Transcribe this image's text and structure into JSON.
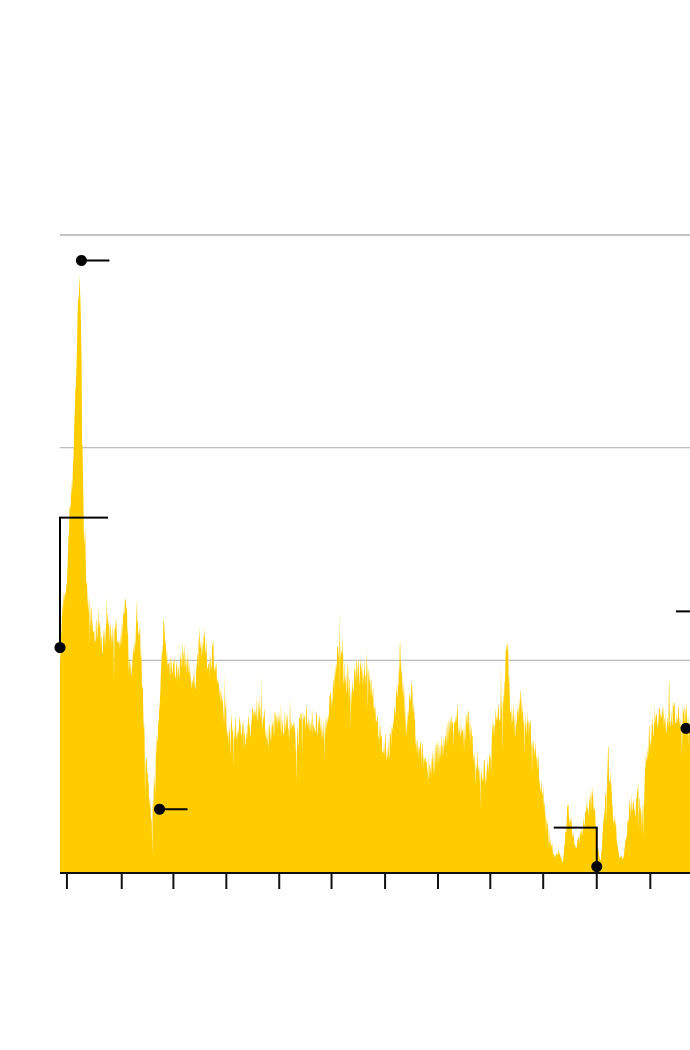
{
  "colors": {
    "area": "#ffcc00",
    "gridline": "#b5b5b5",
    "top_rule": "#c4c4c4",
    "axis": "#111111",
    "annotation": "#000000"
  },
  "chart_data": {
    "type": "area",
    "title": "",
    "xlabel": "",
    "ylabel": "",
    "xlim": [
      0,
      1000
    ],
    "ylim": [
      0,
      300
    ],
    "grid": true,
    "gridlines_y": [
      100,
      200,
      300
    ],
    "x_ticks": [
      11,
      98,
      180,
      264,
      348,
      431,
      516,
      600,
      683,
      767,
      852,
      937
    ],
    "series": [
      {
        "values": [
          [
            0,
            104
          ],
          [
            5,
            126
          ],
          [
            10,
            131
          ],
          [
            15,
            171
          ],
          [
            20,
            186
          ],
          [
            25,
            230
          ],
          [
            31,
            288
          ],
          [
            34,
            240
          ],
          [
            38,
            160
          ],
          [
            44,
            131
          ],
          [
            50,
            118
          ],
          [
            56,
            110
          ],
          [
            62,
            121
          ],
          [
            68,
            104
          ],
          [
            74,
            125
          ],
          [
            80,
            110
          ],
          [
            87,
            118
          ],
          [
            94,
            104
          ],
          [
            98,
            112
          ],
          [
            105,
            127
          ],
          [
            110,
            96
          ],
          [
            117,
            103
          ],
          [
            122,
            120
          ],
          [
            128,
            108
          ],
          [
            135,
            60
          ],
          [
            140,
            40
          ],
          [
            146,
            25
          ],
          [
            152,
            56
          ],
          [
            158,
            74
          ],
          [
            164,
            116
          ],
          [
            172,
            97
          ],
          [
            178,
            100
          ],
          [
            186,
            94
          ],
          [
            195,
            103
          ],
          [
            204,
            98
          ],
          [
            212,
            88
          ],
          [
            220,
            104
          ],
          [
            228,
            110
          ],
          [
            236,
            98
          ],
          [
            244,
            106
          ],
          [
            252,
            86
          ],
          [
            260,
            76
          ],
          [
            268,
            68
          ],
          [
            280,
            70
          ],
          [
            292,
            66
          ],
          [
            305,
            72
          ],
          [
            315,
            80
          ],
          [
            330,
            65
          ],
          [
            345,
            72
          ],
          [
            360,
            70
          ],
          [
            375,
            64
          ],
          [
            390,
            74
          ],
          [
            405,
            70
          ],
          [
            418,
            66
          ],
          [
            430,
            80
          ],
          [
            440,
            100
          ],
          [
            445,
            110
          ],
          [
            450,
            95
          ],
          [
            456,
            90
          ],
          [
            462,
            84
          ],
          [
            470,
            96
          ],
          [
            478,
            92
          ],
          [
            488,
            96
          ],
          [
            495,
            88
          ],
          [
            502,
            75
          ],
          [
            510,
            60
          ],
          [
            520,
            58
          ],
          [
            530,
            68
          ],
          [
            540,
            105
          ],
          [
            550,
            66
          ],
          [
            558,
            88
          ],
          [
            566,
            58
          ],
          [
            575,
            55
          ],
          [
            588,
            50
          ],
          [
            598,
            56
          ],
          [
            608,
            60
          ],
          [
            618,
            68
          ],
          [
            628,
            75
          ],
          [
            638,
            64
          ],
          [
            648,
            72
          ],
          [
            658,
            56
          ],
          [
            668,
            45
          ],
          [
            678,
            48
          ],
          [
            688,
            70
          ],
          [
            698,
            76
          ],
          [
            705,
            86
          ],
          [
            710,
            112
          ],
          [
            715,
            75
          ],
          [
            722,
            68
          ],
          [
            730,
            80
          ],
          [
            738,
            72
          ],
          [
            746,
            68
          ],
          [
            754,
            58
          ],
          [
            762,
            45
          ],
          [
            770,
            30
          ],
          [
            778,
            15
          ],
          [
            786,
            8
          ],
          [
            792,
            10
          ],
          [
            798,
            4
          ],
          [
            806,
            30
          ],
          [
            812,
            22
          ],
          [
            818,
            12
          ],
          [
            824,
            15
          ],
          [
            830,
            22
          ],
          [
            838,
            28
          ],
          [
            846,
            40
          ],
          [
            852,
            15
          ],
          [
            858,
            5
          ],
          [
            864,
            28
          ],
          [
            870,
            55
          ],
          [
            876,
            35
          ],
          [
            882,
            20
          ],
          [
            888,
            8
          ],
          [
            894,
            6
          ],
          [
            900,
            20
          ],
          [
            906,
            35
          ],
          [
            912,
            30
          ],
          [
            918,
            38
          ],
          [
            924,
            22
          ],
          [
            930,
            56
          ],
          [
            938,
            66
          ],
          [
            946,
            76
          ],
          [
            954,
            74
          ],
          [
            962,
            72
          ],
          [
            970,
            75
          ],
          [
            978,
            74
          ],
          [
            986,
            72
          ],
          [
            994,
            74
          ],
          [
            1000,
            72
          ]
        ]
      }
    ],
    "annotations": [
      {
        "x": 0,
        "y": 106,
        "connector": "elbow-up-right"
      },
      {
        "x": 34,
        "y": 288,
        "connector": "right"
      },
      {
        "x": 158,
        "y": 30,
        "connector": "right"
      },
      {
        "x": 852,
        "y": 3,
        "connector": "elbow-up-left"
      },
      {
        "x": 1000,
        "y": 68,
        "connector": "elbow-up-left"
      }
    ]
  }
}
